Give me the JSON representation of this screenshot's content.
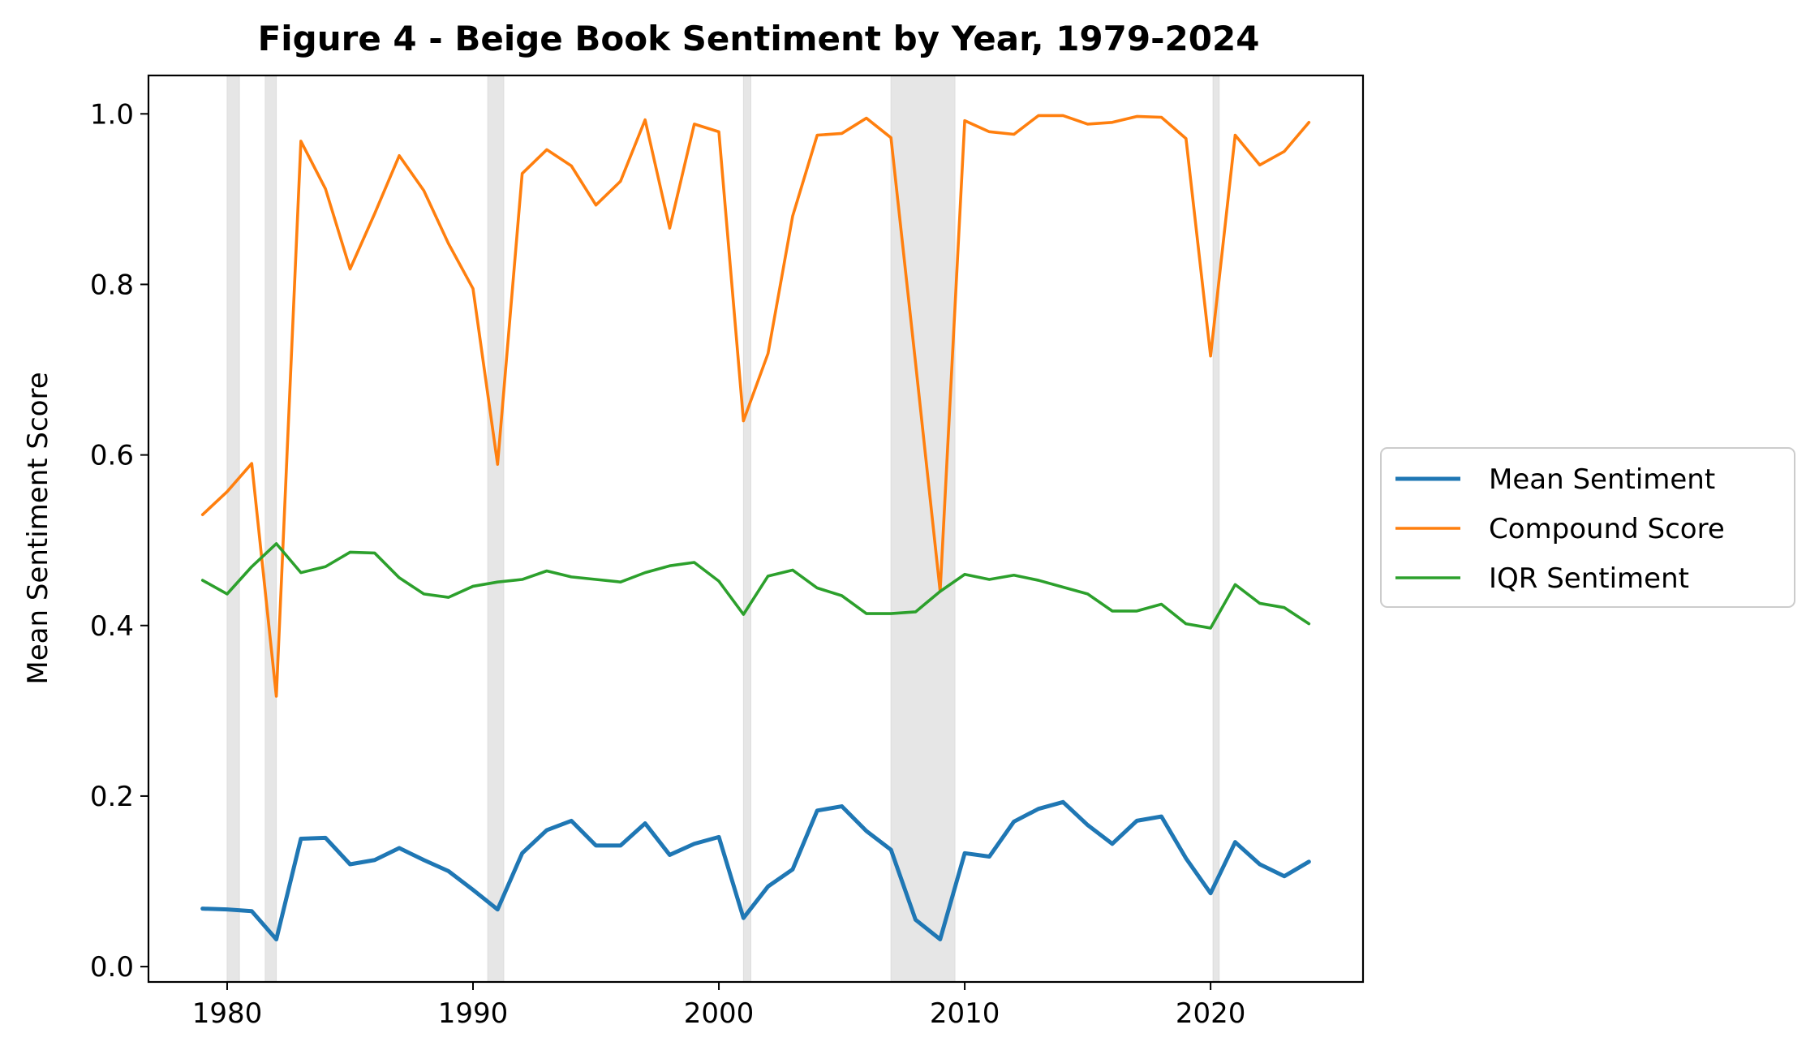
{
  "chart_data": {
    "type": "line",
    "title": "Figure 4 - Beige Book Sentiment by Year, 1979-2024",
    "xlabel": "",
    "ylabel": "Mean Sentiment Score",
    "xlim": [
      1976.8,
      2026.2
    ],
    "ylim": [
      -0.018,
      1.045
    ],
    "xticks": [
      1980,
      1990,
      2000,
      2010,
      2020
    ],
    "yticks": [
      0.0,
      0.2,
      0.4,
      0.6,
      0.8,
      1.0
    ],
    "ytick_labels": [
      "0.0",
      "0.2",
      "0.4",
      "0.6",
      "0.8",
      "1.0"
    ],
    "grid": false,
    "legend_position": "center-right-outside",
    "recessions": [
      [
        1980.0,
        1980.5
      ],
      [
        1981.55,
        1982.0
      ],
      [
        1990.6,
        1991.25
      ],
      [
        2001.0,
        2001.3
      ],
      [
        2007.0,
        2009.6
      ],
      [
        2020.1,
        2020.35
      ]
    ],
    "recession_color": "#e6e6e6",
    "x": [
      1979,
      1980,
      1981,
      1982,
      1983,
      1984,
      1985,
      1986,
      1987,
      1988,
      1989,
      1990,
      1991,
      1992,
      1993,
      1994,
      1995,
      1996,
      1997,
      1998,
      1999,
      2000,
      2001,
      2002,
      2003,
      2004,
      2005,
      2006,
      2007,
      2008,
      2009,
      2010,
      2011,
      2012,
      2013,
      2014,
      2015,
      2016,
      2017,
      2018,
      2019,
      2020,
      2021,
      2022,
      2023,
      2024
    ],
    "series": [
      {
        "name": "Mean Sentiment",
        "color": "#1f77b4",
        "width": 5,
        "values": [
          0.068,
          0.067,
          0.065,
          0.032,
          0.15,
          0.151,
          0.12,
          0.125,
          0.139,
          0.125,
          0.112,
          0.09,
          0.067,
          0.133,
          0.16,
          0.171,
          0.142,
          0.142,
          0.168,
          0.131,
          0.144,
          0.152,
          0.057,
          0.094,
          0.114,
          0.183,
          0.188,
          0.159,
          0.137,
          0.055,
          0.032,
          0.133,
          0.129,
          0.17,
          0.185,
          0.193,
          0.166,
          0.144,
          0.171,
          0.176,
          0.127,
          0.086,
          0.146,
          0.12,
          0.106,
          0.123
        ]
      },
      {
        "name": "Compound Score",
        "color": "#ff7f0e",
        "width": 3.6,
        "values": [
          0.53,
          0.557,
          0.59,
          0.317,
          0.968,
          0.912,
          0.818,
          0.883,
          0.951,
          0.91,
          0.848,
          0.795,
          0.589,
          0.93,
          0.958,
          0.939,
          0.893,
          0.921,
          0.993,
          0.866,
          0.988,
          0.979,
          0.64,
          0.719,
          0.88,
          0.975,
          0.977,
          0.995,
          0.972,
          0.708,
          0.44,
          0.992,
          0.979,
          0.976,
          0.998,
          0.998,
          0.988,
          0.99,
          0.997,
          0.996,
          0.971,
          0.716,
          0.975,
          0.94,
          0.956,
          0.99
        ]
      },
      {
        "name": "IQR Sentiment",
        "color": "#2ca02c",
        "width": 3.6,
        "values": [
          0.453,
          0.437,
          0.469,
          0.496,
          0.462,
          0.469,
          0.486,
          0.485,
          0.456,
          0.437,
          0.433,
          0.446,
          0.451,
          0.454,
          0.464,
          0.457,
          0.454,
          0.451,
          0.462,
          0.47,
          0.474,
          0.452,
          0.413,
          0.458,
          0.465,
          0.444,
          0.435,
          0.414,
          0.414,
          0.416,
          0.44,
          0.46,
          0.454,
          0.459,
          0.453,
          0.445,
          0.437,
          0.417,
          0.417,
          0.425,
          0.402,
          0.397,
          0.448,
          0.426,
          0.421,
          0.402
        ]
      }
    ]
  }
}
